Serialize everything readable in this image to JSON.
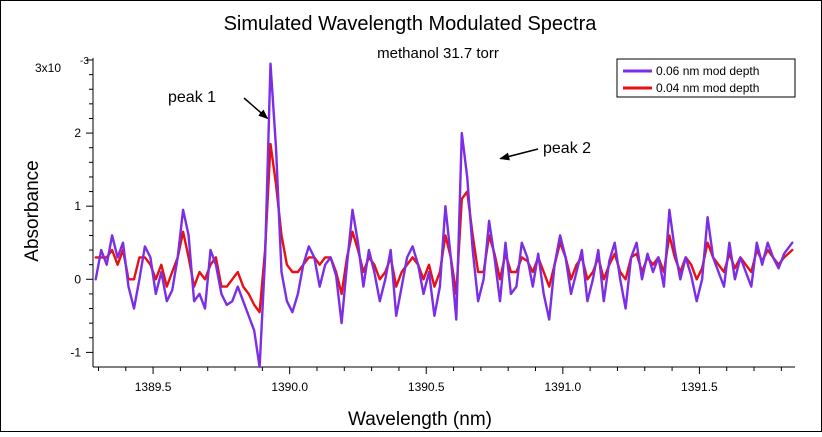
{
  "chart_data": {
    "type": "line",
    "title": "Simulated Wavelength Modulated  Spectra",
    "subtitle": "methanol 31.7 torr",
    "xlabel": "Wavelength (nm)",
    "ylabel": "Absorbance",
    "y_exponent_base": "3x10",
    "y_exponent_power": "-3",
    "xlim": [
      1389.28,
      1391.85
    ],
    "ylim": [
      -1.2,
      3.0
    ],
    "xticks": [
      1389.5,
      1390.0,
      1390.5,
      1391.0,
      1391.5
    ],
    "xtick_labels": [
      "1389.5",
      "1390.0",
      "1390.5",
      "1391.0",
      "1391.5"
    ],
    "yticks": [
      -1,
      0,
      1,
      2
    ],
    "ytick_labels": [
      "-1",
      "0",
      "1",
      "2"
    ],
    "grid": false,
    "legend_position": "top-right",
    "series": [
      {
        "name": "0.06 nm mod depth",
        "color": "#7b2ee6",
        "x": [
          1389.29,
          1389.31,
          1389.33,
          1389.35,
          1389.37,
          1389.39,
          1389.41,
          1389.43,
          1389.45,
          1389.47,
          1389.49,
          1389.51,
          1389.53,
          1389.55,
          1389.57,
          1389.59,
          1389.61,
          1389.63,
          1389.65,
          1389.67,
          1389.69,
          1389.71,
          1389.73,
          1389.75,
          1389.77,
          1389.79,
          1389.81,
          1389.83,
          1389.85,
          1389.87,
          1389.89,
          1389.91,
          1389.93,
          1389.95,
          1389.97,
          1389.99,
          1390.01,
          1390.03,
          1390.05,
          1390.07,
          1390.09,
          1390.11,
          1390.13,
          1390.15,
          1390.17,
          1390.19,
          1390.21,
          1390.23,
          1390.25,
          1390.27,
          1390.29,
          1390.31,
          1390.33,
          1390.35,
          1390.37,
          1390.39,
          1390.41,
          1390.43,
          1390.45,
          1390.47,
          1390.49,
          1390.51,
          1390.53,
          1390.55,
          1390.57,
          1390.59,
          1390.61,
          1390.63,
          1390.65,
          1390.67,
          1390.69,
          1390.71,
          1390.73,
          1390.75,
          1390.77,
          1390.79,
          1390.81,
          1390.83,
          1390.85,
          1390.87,
          1390.89,
          1390.91,
          1390.93,
          1390.95,
          1390.97,
          1390.99,
          1391.01,
          1391.03,
          1391.05,
          1391.07,
          1391.09,
          1391.11,
          1391.13,
          1391.15,
          1391.17,
          1391.19,
          1391.21,
          1391.23,
          1391.25,
          1391.27,
          1391.29,
          1391.31,
          1391.33,
          1391.35,
          1391.37,
          1391.39,
          1391.41,
          1391.43,
          1391.45,
          1391.47,
          1391.49,
          1391.51,
          1391.53,
          1391.55,
          1391.57,
          1391.59,
          1391.61,
          1391.63,
          1391.65,
          1391.67,
          1391.69,
          1391.71,
          1391.73,
          1391.75,
          1391.77,
          1391.79,
          1391.81,
          1391.84
        ],
        "values": [
          0.0,
          0.4,
          0.2,
          0.6,
          0.3,
          0.5,
          -0.1,
          -0.4,
          0.0,
          0.45,
          0.3,
          -0.2,
          0.1,
          -0.3,
          -0.15,
          0.3,
          0.95,
          0.6,
          -0.3,
          -0.2,
          -0.4,
          0.4,
          0.2,
          -0.2,
          -0.35,
          -0.3,
          -0.1,
          -0.3,
          -0.5,
          -0.7,
          -1.2,
          0.3,
          2.95,
          1.8,
          0.1,
          -0.3,
          -0.45,
          -0.2,
          0.2,
          0.45,
          0.3,
          -0.1,
          0.2,
          0.3,
          0.05,
          -0.6,
          0.2,
          0.95,
          0.5,
          -0.1,
          0.4,
          0.1,
          -0.3,
          0.0,
          0.4,
          -0.5,
          -0.1,
          0.3,
          0.45,
          0.2,
          -0.2,
          0.1,
          -0.5,
          -0.1,
          1.0,
          0.3,
          -0.55,
          2.0,
          1.4,
          0.4,
          -0.3,
          0.0,
          0.8,
          0.3,
          -0.3,
          0.5,
          -0.2,
          -0.1,
          0.5,
          0.3,
          -0.1,
          0.35,
          -0.2,
          -0.55,
          0.2,
          0.6,
          0.3,
          -0.2,
          0.1,
          0.4,
          -0.3,
          0.0,
          0.4,
          -0.3,
          0.25,
          0.5,
          0.0,
          -0.4,
          0.3,
          0.5,
          0.0,
          0.35,
          0.1,
          0.3,
          -0.1,
          0.95,
          0.4,
          0.0,
          0.3,
          0.05,
          -0.3,
          0.0,
          0.85,
          0.3,
          0.1,
          -0.1,
          0.5,
          0.0,
          0.3,
          0.1,
          -0.1,
          0.5,
          0.2,
          0.5,
          0.3,
          0.15,
          0.35,
          0.5
        ]
      },
      {
        "name": "0.04 nm mod depth",
        "color": "#e81010",
        "x": [
          1389.29,
          1389.31,
          1389.33,
          1389.35,
          1389.37,
          1389.39,
          1389.41,
          1389.43,
          1389.45,
          1389.47,
          1389.49,
          1389.51,
          1389.53,
          1389.55,
          1389.57,
          1389.59,
          1389.61,
          1389.63,
          1389.65,
          1389.67,
          1389.69,
          1389.71,
          1389.73,
          1389.75,
          1389.77,
          1389.79,
          1389.81,
          1389.83,
          1389.85,
          1389.87,
          1389.89,
          1389.91,
          1389.93,
          1389.95,
          1389.97,
          1389.99,
          1390.01,
          1390.03,
          1390.05,
          1390.07,
          1390.09,
          1390.11,
          1390.13,
          1390.15,
          1390.17,
          1390.19,
          1390.21,
          1390.23,
          1390.25,
          1390.27,
          1390.29,
          1390.31,
          1390.33,
          1390.35,
          1390.37,
          1390.39,
          1390.41,
          1390.43,
          1390.45,
          1390.47,
          1390.49,
          1390.51,
          1390.53,
          1390.55,
          1390.57,
          1390.59,
          1390.61,
          1390.63,
          1390.65,
          1390.67,
          1390.69,
          1390.71,
          1390.73,
          1390.75,
          1390.77,
          1390.79,
          1390.81,
          1390.83,
          1390.85,
          1390.87,
          1390.89,
          1390.91,
          1390.93,
          1390.95,
          1390.97,
          1390.99,
          1391.01,
          1391.03,
          1391.05,
          1391.07,
          1391.09,
          1391.11,
          1391.13,
          1391.15,
          1391.17,
          1391.19,
          1391.21,
          1391.23,
          1391.25,
          1391.27,
          1391.29,
          1391.31,
          1391.33,
          1391.35,
          1391.37,
          1391.39,
          1391.41,
          1391.43,
          1391.45,
          1391.47,
          1391.49,
          1391.51,
          1391.53,
          1391.55,
          1391.57,
          1391.59,
          1391.61,
          1391.63,
          1391.65,
          1391.67,
          1391.69,
          1391.71,
          1391.73,
          1391.75,
          1391.77,
          1391.79,
          1391.81,
          1391.84
        ],
        "values": [
          0.3,
          0.3,
          0.3,
          0.4,
          0.2,
          0.4,
          0.0,
          0.0,
          0.3,
          0.3,
          0.2,
          0.0,
          0.2,
          -0.1,
          0.1,
          0.3,
          0.65,
          0.3,
          -0.1,
          0.1,
          0.0,
          0.2,
          0.3,
          -0.1,
          -0.1,
          0.0,
          0.1,
          -0.1,
          -0.2,
          -0.35,
          -0.45,
          0.4,
          1.85,
          1.3,
          0.6,
          0.2,
          0.1,
          0.1,
          0.2,
          0.3,
          0.3,
          0.2,
          0.3,
          0.3,
          0.1,
          -0.2,
          0.3,
          0.65,
          0.4,
          0.1,
          0.3,
          0.2,
          0.0,
          0.1,
          0.3,
          -0.1,
          0.1,
          0.2,
          0.3,
          0.2,
          0.0,
          0.2,
          -0.1,
          0.1,
          0.6,
          0.3,
          -0.2,
          1.1,
          1.2,
          0.6,
          0.1,
          0.1,
          0.6,
          0.35,
          0.0,
          0.35,
          0.1,
          0.1,
          0.3,
          0.25,
          0.1,
          0.3,
          0.1,
          -0.1,
          0.2,
          0.5,
          0.3,
          0.0,
          0.2,
          0.3,
          0.0,
          0.1,
          0.3,
          0.0,
          0.2,
          0.35,
          0.1,
          0.0,
          0.3,
          0.35,
          0.1,
          0.3,
          0.2,
          0.3,
          0.1,
          0.6,
          0.3,
          0.1,
          0.3,
          0.2,
          0.0,
          0.15,
          0.5,
          0.3,
          0.2,
          0.1,
          0.35,
          0.15,
          0.3,
          0.2,
          0.1,
          0.4,
          0.25,
          0.4,
          0.3,
          0.2,
          0.3,
          0.4
        ]
      }
    ],
    "annotations": [
      {
        "text": "peak 1",
        "arrow_to": [
          1389.93,
          2.2
        ]
      },
      {
        "text": "peak 2",
        "arrow_to": [
          1390.76,
          1.65
        ]
      }
    ]
  }
}
